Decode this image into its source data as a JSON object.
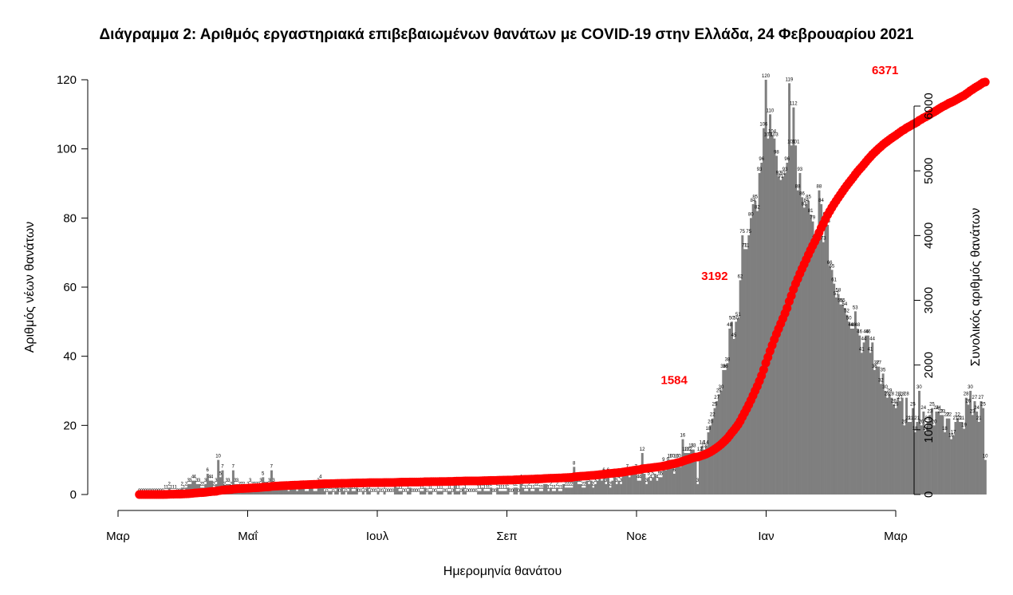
{
  "chart_data": {
    "type": "bar",
    "title": "Διάγραμμα 2: Αριθμός εργαστηριακά επιβεβαιωμένων θανάτων με COVID-19 στην Ελλάδα, 24 Φεβρουαρίου 2021",
    "xlabel": "Ημερομηνία θανάτου",
    "ylabel": "Αριθμός νέων θανάτων",
    "y2label": "Συνολικός αριθμός θανάτων",
    "x_ticks": [
      "Μαρ",
      "Μαΐ",
      "Ιουλ",
      "Σεπ",
      "Νοε",
      "Ιαν",
      "Μαρ"
    ],
    "y_ticks": [
      0,
      20,
      40,
      60,
      80,
      100,
      120
    ],
    "y2_ticks": [
      0,
      1000,
      2000,
      3000,
      4000,
      5000,
      6000
    ],
    "ylim": [
      0,
      120
    ],
    "y2lim": [
      0,
      6371
    ],
    "x_start": "2020-03-01",
    "x_end": "2021-03-01",
    "grid": false,
    "bar_color": "#7f7f7f",
    "line_color": "#ff0000",
    "series": [
      {
        "name": "Αριθμός νέων θανάτων",
        "type": "bar",
        "start_date": "2020-03-11",
        "values": [
          0,
          0,
          0,
          0,
          0,
          0,
          0,
          0,
          0,
          0,
          0,
          0,
          1,
          1,
          2,
          1,
          1,
          1,
          0,
          0,
          2,
          1,
          2,
          3,
          3,
          4,
          4,
          3,
          3,
          2,
          2,
          3,
          6,
          4,
          4,
          2,
          3,
          10,
          5,
          7,
          2,
          3,
          3,
          2,
          7,
          3,
          3,
          2,
          2,
          2,
          1,
          2,
          3,
          2,
          2,
          2,
          2,
          3,
          5,
          2,
          2,
          3,
          7,
          3,
          2,
          2,
          2,
          2,
          2,
          2,
          1,
          2,
          2,
          2,
          1,
          2,
          2,
          2,
          1,
          1,
          2,
          2,
          1,
          1,
          3,
          4,
          2,
          1,
          0,
          1,
          1,
          0,
          1,
          2,
          0,
          2,
          1,
          0,
          1,
          2,
          1,
          1,
          2,
          0,
          0,
          1,
          0,
          2,
          1,
          0,
          0,
          0,
          1,
          0,
          0,
          1,
          0,
          0,
          0,
          0,
          3,
          2,
          1,
          1,
          0,
          0,
          1,
          2,
          0,
          0,
          0,
          0,
          1,
          1,
          2,
          0,
          1,
          1,
          0,
          0,
          1,
          1,
          1,
          0,
          0,
          1,
          1,
          0,
          3,
          1,
          1,
          0,
          2,
          1,
          0,
          0,
          0,
          0,
          0,
          1,
          1,
          2,
          1,
          1,
          1,
          2,
          0,
          0,
          2,
          1,
          1,
          1,
          1,
          2,
          0,
          0,
          2,
          2,
          0,
          4,
          2,
          1,
          1,
          2,
          1,
          1,
          2,
          2,
          1,
          1,
          3,
          3,
          1,
          2,
          1,
          1,
          2,
          1,
          1,
          3,
          2,
          2,
          2,
          2,
          8,
          4,
          3,
          3,
          2,
          2,
          4,
          3,
          4,
          2,
          3,
          4,
          5,
          4,
          6,
          3,
          6,
          2,
          4,
          5,
          3,
          4,
          3,
          6,
          6,
          7,
          5,
          6,
          6,
          7,
          4,
          4,
          12,
          6,
          3,
          5,
          4,
          5,
          6,
          4,
          5,
          5,
          9,
          7,
          9,
          10,
          10,
          6,
          10,
          10,
          8,
          16,
          12,
          12,
          12,
          13,
          13,
          10,
          3,
          12,
          14,
          13,
          14,
          18,
          20,
          22,
          25,
          27,
          29,
          30,
          36,
          36,
          38,
          48,
          50,
          45,
          50,
          51,
          62,
          75,
          71,
          71,
          75,
          80,
          84,
          85,
          82,
          93,
          96,
          106,
          120,
          103,
          110,
          104,
          103,
          98,
          92,
          91,
          92,
          93,
          96,
          119,
          101,
          112,
          101,
          88,
          93,
          86,
          83,
          84,
          85,
          81,
          79,
          73,
          74,
          88,
          84,
          73,
          80,
          78,
          66,
          65,
          61,
          57,
          58,
          55,
          55,
          54,
          52,
          50,
          48,
          48,
          53,
          48,
          46,
          41,
          44,
          46,
          46,
          41,
          44,
          36,
          37,
          37,
          32,
          35,
          30,
          28,
          29,
          28,
          26,
          25,
          28,
          27,
          28,
          20,
          28,
          21,
          21,
          25,
          18,
          21,
          30,
          20,
          24,
          18,
          21,
          23,
          25,
          20,
          24,
          24,
          23,
          23,
          18,
          22,
          22,
          16,
          17,
          21,
          22,
          21,
          21,
          19,
          28,
          26,
          30,
          23,
          27,
          24,
          21,
          27,
          25,
          10
        ]
      },
      {
        "name": "Συνολικός αριθμός θανάτων",
        "type": "line",
        "cumulative_of": "Αριθμός νέων θανάτων"
      }
    ],
    "annotations": [
      {
        "text": "1584",
        "date": "2020-11-17",
        "value": 1584
      },
      {
        "text": "3192",
        "date": "2020-12-06",
        "value": 3192
      },
      {
        "text": "6371",
        "date": "2021-02-24",
        "value": 6371
      }
    ],
    "bar_labels_shown": true
  }
}
